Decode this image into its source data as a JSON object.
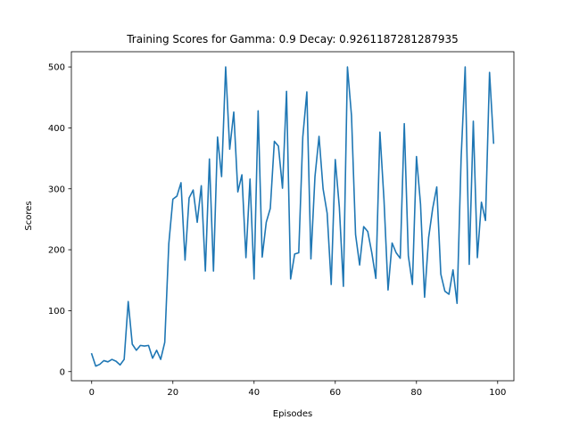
{
  "chart_data": {
    "type": "line",
    "title": "Training Scores for Gamma: 0.9 Decay: 0.9261187281287935",
    "xlabel": "Episodes",
    "ylabel": "Scores",
    "xlim": [
      -5,
      104
    ],
    "ylim": [
      -15,
      525
    ],
    "xticks": [
      0,
      20,
      40,
      60,
      80,
      100
    ],
    "yticks": [
      0,
      100,
      200,
      300,
      400,
      500
    ],
    "grid": false,
    "line_color": "#1f77b4",
    "series": [
      {
        "x": [
          0,
          1,
          2,
          3,
          4,
          5,
          6,
          7,
          8,
          9,
          10,
          11,
          12,
          13,
          14,
          15,
          16,
          17,
          18,
          19,
          20,
          21,
          22,
          23,
          24,
          25,
          26,
          27,
          28,
          29,
          30,
          31,
          32,
          33,
          34,
          35,
          36,
          37,
          38,
          39,
          40,
          41,
          42,
          43,
          44,
          45,
          46,
          47,
          48,
          49,
          50,
          51,
          52,
          53,
          54,
          55,
          56,
          57,
          58,
          59,
          60,
          61,
          62,
          63,
          64,
          65,
          66,
          67,
          68,
          69,
          70,
          71,
          72,
          73,
          74,
          75,
          76,
          77,
          78,
          79,
          80,
          81,
          82,
          83,
          84,
          85,
          86,
          87,
          88,
          89,
          90,
          91,
          92,
          93,
          94,
          95,
          96,
          97,
          98,
          99
        ],
        "values": [
          29,
          9,
          12,
          18,
          16,
          20,
          17,
          11,
          20,
          115,
          45,
          35,
          43,
          42,
          43,
          22,
          35,
          20,
          48,
          210,
          283,
          288,
          310,
          183,
          285,
          298,
          245,
          305,
          165,
          349,
          165,
          385,
          320,
          500,
          365,
          426,
          295,
          323,
          187,
          316,
          152,
          428,
          188,
          245,
          268,
          378,
          370,
          301,
          460,
          152,
          193,
          195,
          385,
          459,
          185,
          320,
          386,
          300,
          260,
          143,
          348,
          270,
          140,
          500,
          420,
          225,
          175,
          238,
          230,
          195,
          153,
          393,
          282,
          134,
          211,
          195,
          186,
          407,
          190,
          143,
          353,
          275,
          122,
          220,
          268,
          303,
          160,
          132,
          127,
          167,
          112,
          350,
          500,
          176,
          411,
          187,
          278,
          248,
          491,
          375
        ]
      }
    ]
  }
}
